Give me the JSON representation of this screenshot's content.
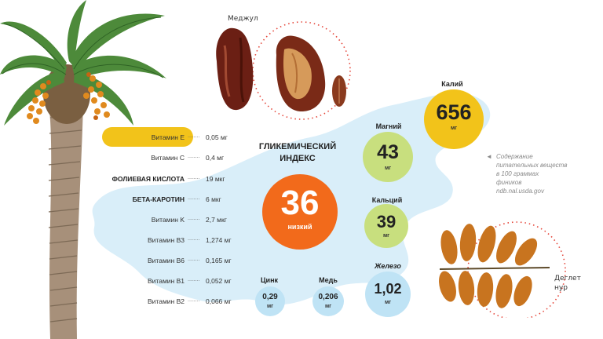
{
  "varieties": {
    "medjool": "Меджул",
    "deglet_line1": "Деглет",
    "deglet_line2": "нур"
  },
  "vitamins": [
    {
      "name": "Витамин E",
      "value": "0,05 мг",
      "highlight": true
    },
    {
      "name": "Витамин C",
      "value": "0,4 мг"
    },
    {
      "name": "ФОЛИЕВАЯ КИСЛОТА",
      "value": "19 мкг",
      "bold": true
    },
    {
      "name": "БЕТА-КАРОТИН",
      "value": "6 мкг",
      "bold": true
    },
    {
      "name": "Витамин K",
      "value": "2,7 мкг"
    },
    {
      "name": "Витамин B3",
      "value": "1,274 мг"
    },
    {
      "name": "Витамин B6",
      "value": "0,165 мг"
    },
    {
      "name": "Витамин B1",
      "value": "0,052 мг"
    },
    {
      "name": "Витамин B2",
      "value": "0,066 мг"
    }
  ],
  "vitamin_dots": "........",
  "glycemic": {
    "title_line1": "ГЛИКЕМИЧЕСКИЙ",
    "title_line2": "ИНДЕКС",
    "value": "36",
    "label": "низкий"
  },
  "minerals": {
    "potassium": {
      "name": "Калий",
      "value": "656",
      "unit": "мг"
    },
    "magnesium": {
      "name": "Магний",
      "value": "43",
      "unit": "мг"
    },
    "calcium": {
      "name": "Кальций",
      "value": "39",
      "unit": "мг"
    },
    "iron": {
      "name": "Железо",
      "value": "1,02",
      "unit": "мг"
    },
    "zinc": {
      "name": "Цинк",
      "value": "0,29",
      "unit": "мг"
    },
    "copper": {
      "name": "Медь",
      "value": "0,206",
      "unit": "мг"
    }
  },
  "note": {
    "arrow": "◄",
    "lines": [
      "Содержание",
      "питательных веществ",
      "в 100 граммах",
      "фиников",
      "ndb.nal.usda.gov"
    ]
  },
  "colors": {
    "yellow": "#f2c31a",
    "orange": "#f26a1b",
    "green": "#c8df7e",
    "blue_light": "#bfe3f5",
    "map_blue": "#d9eef9",
    "dotted_red": "#e5463a"
  }
}
